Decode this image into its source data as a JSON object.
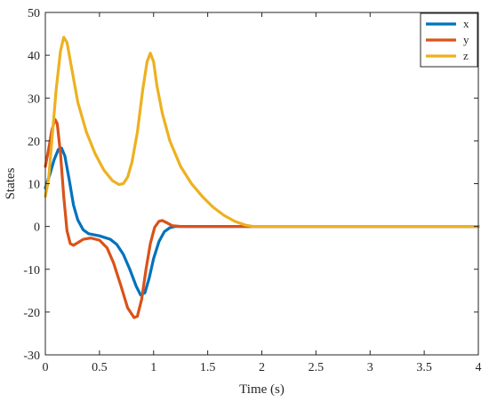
{
  "chart_data": {
    "type": "line",
    "title": "",
    "xlabel": "Time (s)",
    "ylabel": "States",
    "xlim": [
      0,
      4
    ],
    "ylim": [
      -30,
      50
    ],
    "xticks": [
      0,
      0.5,
      1,
      1.5,
      2,
      2.5,
      3,
      3.5,
      4
    ],
    "xtick_labels": [
      "0",
      "0.5",
      "1",
      "1.5",
      "2",
      "2.5",
      "3",
      "3.5",
      "4"
    ],
    "yticks": [
      -30,
      -20,
      -10,
      0,
      10,
      20,
      30,
      40,
      50
    ],
    "ytick_labels": [
      "-30",
      "-20",
      "-10",
      "0",
      "10",
      "20",
      "30",
      "40",
      "50"
    ],
    "grid": false,
    "legend": {
      "position": "top-right"
    },
    "series": [
      {
        "name": "x",
        "color": "#0072BD",
        "points": [
          [
            0,
            9
          ],
          [
            0.04,
            12
          ],
          [
            0.08,
            15.5
          ],
          [
            0.12,
            18
          ],
          [
            0.15,
            18.3
          ],
          [
            0.18,
            16.5
          ],
          [
            0.22,
            11
          ],
          [
            0.26,
            5
          ],
          [
            0.3,
            1.5
          ],
          [
            0.35,
            -0.8
          ],
          [
            0.4,
            -1.7
          ],
          [
            0.5,
            -2.2
          ],
          [
            0.6,
            -3
          ],
          [
            0.66,
            -4.2
          ],
          [
            0.72,
            -6.5
          ],
          [
            0.78,
            -10
          ],
          [
            0.84,
            -14
          ],
          [
            0.88,
            -16
          ],
          [
            0.92,
            -15.5
          ],
          [
            0.96,
            -12
          ],
          [
            1.0,
            -7.5
          ],
          [
            1.05,
            -3.5
          ],
          [
            1.1,
            -1.2
          ],
          [
            1.15,
            -0.3
          ],
          [
            1.2,
            0
          ],
          [
            1.5,
            0
          ],
          [
            2,
            0
          ],
          [
            2.5,
            0
          ],
          [
            3,
            0
          ],
          [
            3.5,
            0
          ],
          [
            4,
            0
          ]
        ]
      },
      {
        "name": "y",
        "color": "#D95319",
        "points": [
          [
            0,
            14
          ],
          [
            0.03,
            18
          ],
          [
            0.06,
            22.5
          ],
          [
            0.09,
            25
          ],
          [
            0.11,
            24
          ],
          [
            0.14,
            17
          ],
          [
            0.17,
            7
          ],
          [
            0.2,
            -1
          ],
          [
            0.23,
            -4
          ],
          [
            0.26,
            -4.4
          ],
          [
            0.3,
            -3.8
          ],
          [
            0.35,
            -3
          ],
          [
            0.42,
            -2.7
          ],
          [
            0.5,
            -3.2
          ],
          [
            0.57,
            -5
          ],
          [
            0.63,
            -8.5
          ],
          [
            0.7,
            -14
          ],
          [
            0.76,
            -19
          ],
          [
            0.82,
            -21.3
          ],
          [
            0.85,
            -21
          ],
          [
            0.89,
            -17
          ],
          [
            0.93,
            -10
          ],
          [
            0.97,
            -4
          ],
          [
            1.01,
            -0.2
          ],
          [
            1.05,
            1.2
          ],
          [
            1.08,
            1.4
          ],
          [
            1.12,
            0.9
          ],
          [
            1.17,
            0.2
          ],
          [
            1.25,
            0
          ],
          [
            1.5,
            0
          ],
          [
            2,
            0
          ],
          [
            2.5,
            0
          ],
          [
            3,
            0
          ],
          [
            3.5,
            0
          ],
          [
            4,
            0
          ]
        ]
      },
      {
        "name": "z",
        "color": "#EDB120",
        "points": [
          [
            0,
            7
          ],
          [
            0.03,
            11
          ],
          [
            0.06,
            20
          ],
          [
            0.1,
            32
          ],
          [
            0.14,
            41
          ],
          [
            0.17,
            44.2
          ],
          [
            0.2,
            43
          ],
          [
            0.25,
            36
          ],
          [
            0.3,
            29
          ],
          [
            0.38,
            22
          ],
          [
            0.46,
            17
          ],
          [
            0.54,
            13.2
          ],
          [
            0.62,
            10.7
          ],
          [
            0.68,
            9.8
          ],
          [
            0.72,
            10
          ],
          [
            0.76,
            11.5
          ],
          [
            0.8,
            15
          ],
          [
            0.85,
            22
          ],
          [
            0.9,
            32
          ],
          [
            0.94,
            38.5
          ],
          [
            0.97,
            40.5
          ],
          [
            1.0,
            38.5
          ],
          [
            1.03,
            33
          ],
          [
            1.08,
            26.5
          ],
          [
            1.15,
            20
          ],
          [
            1.25,
            14
          ],
          [
            1.35,
            10
          ],
          [
            1.45,
            7
          ],
          [
            1.55,
            4.5
          ],
          [
            1.65,
            2.6
          ],
          [
            1.75,
            1.2
          ],
          [
            1.85,
            0.3
          ],
          [
            1.92,
            0
          ],
          [
            2.0,
            0
          ],
          [
            2.5,
            0
          ],
          [
            3,
            0
          ],
          [
            3.5,
            0
          ],
          [
            4,
            0
          ]
        ]
      }
    ]
  }
}
